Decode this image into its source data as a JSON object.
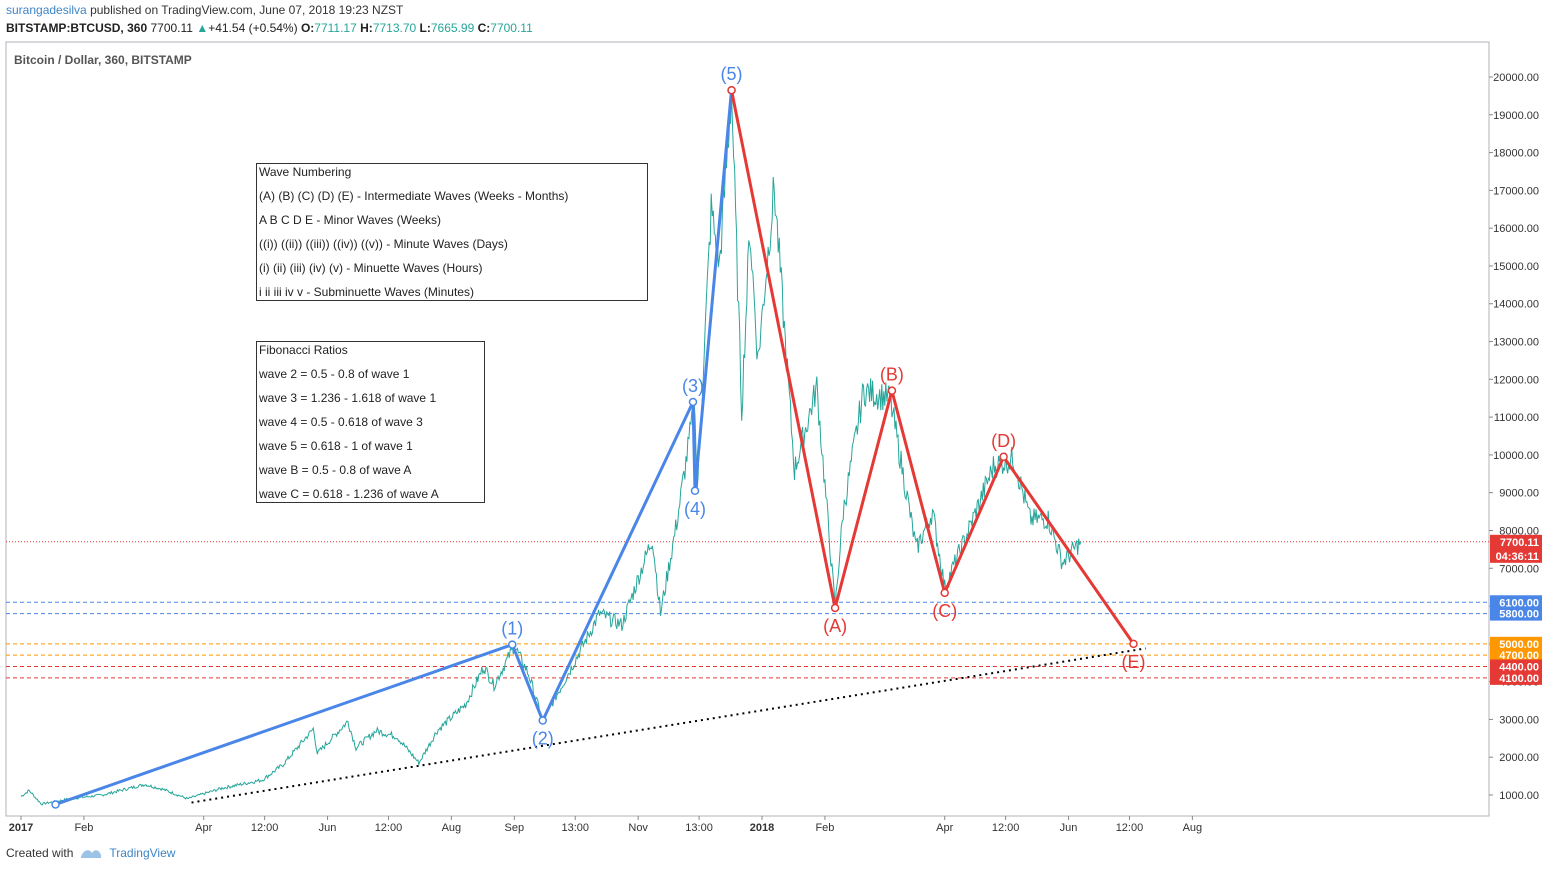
{
  "header": {
    "author": "surangadesilva",
    "published": "published on TradingView.com, June 07, 2018 19:23 NZST",
    "symbol": "BITSTAMP:BTCUSD, 360",
    "last": "7700.11",
    "change": "+41.54 (+0.54%)",
    "o_label": "O:",
    "o_value": "7711.17",
    "h_label": "H:",
    "h_value": "7713.70",
    "l_label": "L:",
    "l_value": "7665.99",
    "c_label": "C:",
    "c_value": "7700.11"
  },
  "chart_title": "Bitcoin / Dollar, 360, BITSTAMP",
  "footer": {
    "created_with": "Created with",
    "brand": "TradingView"
  },
  "notes": {
    "wave_numbering": [
      "Wave Numbering",
      "(A) (B) (C) (D) (E) - Intermediate Waves (Weeks - Months)",
      "A B C D E - Minor Waves (Weeks)",
      "((i)) ((ii)) ((iii)) ((iv)) ((v)) - Minute Waves (Days)",
      "(i) (ii) (iii) (iv) (v) - Minuette Waves (Hours)",
      "i ii iii iv v - Subminuette Waves (Minutes)"
    ],
    "fibonacci": [
      "Fibonacci Ratios",
      "wave 2 = 0.5 - 0.8 of wave 1",
      "wave 3 = 1.236 - 1.618 of wave 1",
      "wave 4 = 0.5 - 0.618 of wave 3",
      "wave 5 = 0.618 - 1 of wave 1",
      "wave B = 0.5 - 0.8 of wave A",
      "wave C = 0.618 - 1.236 of wave A"
    ]
  },
  "chart_data": {
    "type": "line",
    "x_axis": "date",
    "xlim": [
      "2016-12-31",
      "2018-08-25"
    ],
    "ylim": [
      500,
      21000
    ],
    "y_ticks": [
      1000,
      2000,
      3000,
      4000,
      5000,
      6000,
      7000,
      8000,
      9000,
      10000,
      11000,
      12000,
      13000,
      14000,
      15000,
      16000,
      17000,
      18000,
      19000,
      20000
    ],
    "x_ticks": [
      {
        "date": "2017-01-01",
        "label": "2017",
        "bold": true
      },
      {
        "date": "2017-02-01",
        "label": "Feb"
      },
      {
        "date": "2017-04-01",
        "label": "Apr"
      },
      {
        "date": "2017-05-01",
        "label": "12:00"
      },
      {
        "date": "2017-06-01",
        "label": "Jun"
      },
      {
        "date": "2017-07-01",
        "label": "12:00"
      },
      {
        "date": "2017-08-01",
        "label": "Aug"
      },
      {
        "date": "2017-09-01",
        "label": "Sep"
      },
      {
        "date": "2017-10-01",
        "label": "13:00"
      },
      {
        "date": "2017-11-01",
        "label": "Nov"
      },
      {
        "date": "2017-12-01",
        "label": "13:00"
      },
      {
        "date": "2018-01-01",
        "label": "2018",
        "bold": true
      },
      {
        "date": "2018-02-01",
        "label": "Feb"
      },
      {
        "date": "2018-04-01",
        "label": "Apr"
      },
      {
        "date": "2018-05-01",
        "label": "12:00"
      },
      {
        "date": "2018-06-01",
        "label": "Jun"
      },
      {
        "date": "2018-07-01",
        "label": "12:00"
      },
      {
        "date": "2018-08-01",
        "label": "Aug"
      }
    ],
    "price_path": [
      [
        "2017-01-01",
        960
      ],
      [
        "2017-01-05",
        1120
      ],
      [
        "2017-01-11",
        760
      ],
      [
        "2017-01-25",
        900
      ],
      [
        "2017-02-10",
        1000
      ],
      [
        "2017-03-03",
        1280
      ],
      [
        "2017-03-12",
        1150
      ],
      [
        "2017-03-24",
        900
      ],
      [
        "2017-04-10",
        1180
      ],
      [
        "2017-04-30",
        1400
      ],
      [
        "2017-05-10",
        1800
      ],
      [
        "2017-05-25",
        2750
      ],
      [
        "2017-05-27",
        2100
      ],
      [
        "2017-06-11",
        2950
      ],
      [
        "2017-06-15",
        2250
      ],
      [
        "2017-06-25",
        2700
      ],
      [
        "2017-07-05",
        2550
      ],
      [
        "2017-07-16",
        1850
      ],
      [
        "2017-07-25",
        2700
      ],
      [
        "2017-08-08",
        3400
      ],
      [
        "2017-08-17",
        4400
      ],
      [
        "2017-08-22",
        3900
      ],
      [
        "2017-09-01",
        4950
      ],
      [
        "2017-09-08",
        4200
      ],
      [
        "2017-09-15",
        2970
      ],
      [
        "2017-09-25",
        3950
      ],
      [
        "2017-10-13",
        5800
      ],
      [
        "2017-10-24",
        5500
      ],
      [
        "2017-11-08",
        7800
      ],
      [
        "2017-11-12",
        5800
      ],
      [
        "2017-11-20",
        8200
      ],
      [
        "2017-11-29",
        11400
      ],
      [
        "2017-11-30",
        9000
      ],
      [
        "2017-12-07",
        16500
      ],
      [
        "2017-12-11",
        15000
      ],
      [
        "2017-12-17",
        19600
      ],
      [
        "2017-12-22",
        11200
      ],
      [
        "2017-12-26",
        16000
      ],
      [
        "2017-12-30",
        12500
      ],
      [
        "2018-01-07",
        17100
      ],
      [
        "2018-01-17",
        9600
      ],
      [
        "2018-01-28",
        11800
      ],
      [
        "2018-02-06",
        5950
      ],
      [
        "2018-02-10",
        8500
      ],
      [
        "2018-02-20",
        11700
      ],
      [
        "2018-03-05",
        11500
      ],
      [
        "2018-03-18",
        7500
      ],
      [
        "2018-03-26",
        8500
      ],
      [
        "2018-04-01",
        6500
      ],
      [
        "2018-04-12",
        7900
      ],
      [
        "2018-04-25",
        9700
      ],
      [
        "2018-05-05",
        9900
      ],
      [
        "2018-05-13",
        8300
      ],
      [
        "2018-05-22",
        8300
      ],
      [
        "2018-05-29",
        7150
      ],
      [
        "2018-06-07",
        7700
      ]
    ],
    "price_color": "#26a69a",
    "impulse_waves": {
      "color": "#4a86e8",
      "points": [
        {
          "date": "2017-01-18",
          "value": 750,
          "label": ""
        },
        {
          "date": "2017-08-31",
          "value": 4980,
          "label": "(1)"
        },
        {
          "date": "2017-09-15",
          "value": 2970,
          "label": "(2)"
        },
        {
          "date": "2017-11-28",
          "value": 11400,
          "label": "(3)"
        },
        {
          "date": "2017-11-29",
          "value": 9050,
          "label": "(4)"
        },
        {
          "date": "2017-12-17",
          "value": 19650,
          "label": "(5)"
        }
      ]
    },
    "corrective_waves": {
      "color": "#e53935",
      "points": [
        {
          "date": "2017-12-17",
          "value": 19650,
          "label": ""
        },
        {
          "date": "2018-02-06",
          "value": 5950,
          "label": "(A)"
        },
        {
          "date": "2018-03-06",
          "value": 11700,
          "label": "(B)"
        },
        {
          "date": "2018-04-01",
          "value": 6350,
          "label": "(C)"
        },
        {
          "date": "2018-04-30",
          "value": 9950,
          "label": "(D)"
        },
        {
          "date": "2018-07-03",
          "value": 5000,
          "label": "(E)"
        }
      ]
    },
    "trendline": {
      "from": [
        "2017-03-26",
        800
      ],
      "to": [
        "2018-07-09",
        4880
      ],
      "color": "#000000",
      "style": "dotted"
    },
    "horizontal_levels": [
      {
        "value": 6100,
        "label": "6100.00",
        "color": "#4a86e8"
      },
      {
        "value": 5800,
        "label": "5800.00",
        "color": "#4a86e8"
      },
      {
        "value": 5000,
        "label": "5000.00",
        "color": "#ff9800"
      },
      {
        "value": 4700,
        "label": "4700.00",
        "color": "#ff9800"
      },
      {
        "value": 4400,
        "label": "4400.00",
        "color": "#e53935"
      },
      {
        "value": 4100,
        "label": "4100.00",
        "color": "#e53935"
      }
    ],
    "last_price": {
      "value": 7700.11,
      "label": "7700.11",
      "countdown": "04:36:11",
      "color": "#e53935"
    }
  }
}
